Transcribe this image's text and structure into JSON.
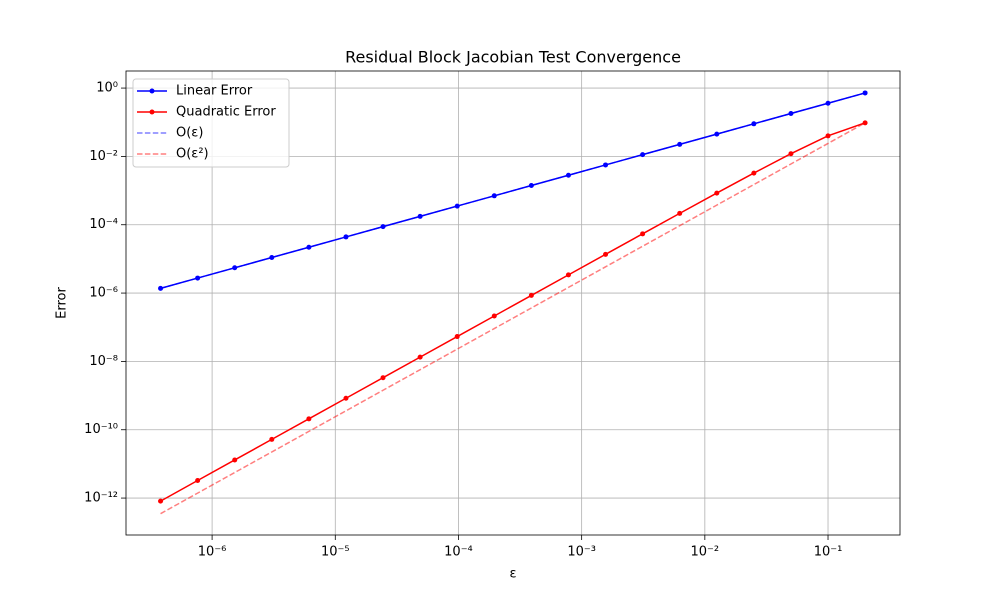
{
  "chart_data": {
    "type": "line",
    "title": "Residual Block Jacobian Test Convergence",
    "xlabel": "ε",
    "ylabel": "Error",
    "xscale": "log",
    "yscale": "log",
    "grid": true,
    "legend": "upper left",
    "x": [
      3.815e-07,
      7.629e-07,
      1.526e-06,
      3.052e-06,
      6.104e-06,
      1.221e-05,
      2.441e-05,
      4.883e-05,
      9.766e-05,
      0.0001953,
      0.0003906,
      0.0007813,
      0.001563,
      0.003125,
      0.00625,
      0.0125,
      0.025,
      0.05,
      0.1,
      0.2
    ],
    "series": [
      {
        "name": "Linear Error",
        "color": "#0000ff",
        "linestyle": "solid",
        "marker": true,
        "alpha": 1,
        "values": [
          1.373e-06,
          2.747e-06,
          5.493e-06,
          1.099e-05,
          2.197e-05,
          4.395e-05,
          8.789e-05,
          0.0001758,
          0.0003516,
          0.0007031,
          0.001406,
          0.002813,
          0.005625,
          0.01125,
          0.0225,
          0.045,
          0.09,
          0.18,
          0.36,
          0.72
        ]
      },
      {
        "name": "Quadratic Error",
        "color": "#ff0000",
        "linestyle": "solid",
        "marker": true,
        "alpha": 1,
        "values": [
          8.15e-13,
          3.26e-12,
          1.304e-11,
          5.215e-11,
          2.086e-10,
          8.34e-10,
          3.337e-09,
          1.335e-08,
          5.34e-08,
          2.136e-07,
          8.54e-07,
          3.415e-06,
          1.361e-05,
          5.42e-05,
          0.0002148,
          0.000844,
          0.00325,
          0.012,
          0.04,
          0.096
        ]
      },
      {
        "name": "O(ε)",
        "color": "#0000ff",
        "linestyle": "dashed",
        "marker": false,
        "alpha": 0.5,
        "values": [
          1.373e-06,
          2.747e-06,
          5.493e-06,
          1.099e-05,
          2.197e-05,
          4.395e-05,
          8.789e-05,
          0.0001758,
          0.0003516,
          0.0007031,
          0.001406,
          0.002813,
          0.005625,
          0.01125,
          0.0225,
          0.045,
          0.09,
          0.18,
          0.36,
          0.72
        ]
      },
      {
        "name": "O(ε²)",
        "color": "#ff0000",
        "linestyle": "dashed",
        "marker": false,
        "alpha": 0.5,
        "values": [
          3.49e-13,
          1.397e-12,
          5.59e-12,
          2.235e-11,
          8.94e-11,
          3.576e-10,
          1.43e-09,
          5.72e-09,
          2.289e-08,
          9.156e-08,
          3.662e-07,
          1.465e-06,
          5.86e-06,
          2.344e-05,
          9.375e-05,
          0.000375,
          0.0015,
          0.006,
          0.024,
          0.096
        ]
      }
    ],
    "xlim": [
      2e-07,
      0.384
    ],
    "ylim": [
      8.3e-14,
      3.16
    ],
    "xticks": [
      {
        "value": 1e-06,
        "label": "10⁻⁶"
      },
      {
        "value": 1e-05,
        "label": "10⁻⁵"
      },
      {
        "value": 0.0001,
        "label": "10⁻⁴"
      },
      {
        "value": 0.001,
        "label": "10⁻³"
      },
      {
        "value": 0.01,
        "label": "10⁻²"
      },
      {
        "value": 0.1,
        "label": "10⁻¹"
      }
    ],
    "yticks": [
      {
        "value": 1e-12,
        "label": "10⁻¹²"
      },
      {
        "value": 1e-10,
        "label": "10⁻¹⁰"
      },
      {
        "value": 1e-08,
        "label": "10⁻⁸"
      },
      {
        "value": 1e-06,
        "label": "10⁻⁶"
      },
      {
        "value": 0.0001,
        "label": "10⁻⁴"
      },
      {
        "value": 0.01,
        "label": "10⁻²"
      },
      {
        "value": 1,
        "label": "10⁰"
      }
    ]
  }
}
